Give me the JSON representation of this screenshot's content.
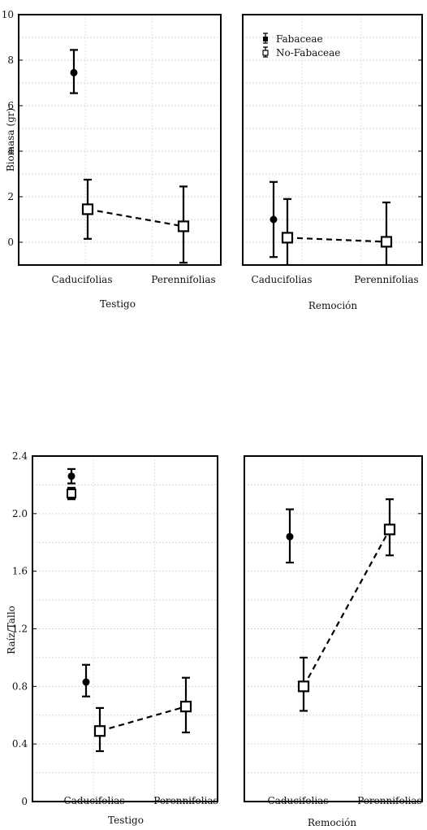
{
  "chart_data": [
    {
      "type": "scatter",
      "panel": "Testigo",
      "xlabel": "Testigo",
      "ylabel": "Biomasa (gr)",
      "ylim": [
        -1,
        10
      ],
      "yticks": [
        0,
        2,
        4,
        6,
        8,
        10
      ],
      "categories": [
        "Caducifolias",
        "Perennifolias"
      ],
      "grid": true,
      "series": [
        {
          "name": "Fabaceae",
          "marker": "filled-circle",
          "line": false,
          "points": [
            {
              "category": "Caducifolias",
              "y": 7.45,
              "low": 6.55,
              "high": 8.45
            }
          ]
        },
        {
          "name": "No-Fabaceae",
          "marker": "open-square",
          "line": "dashed",
          "points": [
            {
              "category": "Caducifolias",
              "y": 1.45,
              "low": 0.15,
              "high": 2.75
            },
            {
              "category": "Perennifolias",
              "y": 0.7,
              "low": -0.9,
              "high": 2.45
            }
          ]
        }
      ]
    },
    {
      "type": "scatter",
      "panel": "Remoción",
      "xlabel": "Remoción",
      "ylabel": "",
      "ylim": [
        -1,
        10
      ],
      "categories": [
        "Caducifolias",
        "Perennifolias"
      ],
      "grid": true,
      "legend": {
        "position": "top-left",
        "entries": [
          "Fabaceae",
          "No-Fabaceae"
        ]
      },
      "series": [
        {
          "name": "Fabaceae",
          "marker": "filled-circle",
          "line": false,
          "points": [
            {
              "category": "Caducifolias",
              "y": 1.0,
              "low": -0.65,
              "high": 2.65
            }
          ]
        },
        {
          "name": "No-Fabaceae",
          "marker": "open-square",
          "line": "dashed",
          "points": [
            {
              "category": "Caducifolias",
              "y": 0.2,
              "low": -1.0,
              "high": 1.9
            },
            {
              "category": "Perennifolias",
              "y": 0.02,
              "low": -1.0,
              "high": 1.75
            }
          ]
        }
      ]
    },
    {
      "type": "scatter",
      "panel": "Testigo",
      "xlabel": "Testigo",
      "ylabel": "Raíz/Tallo",
      "ylim": [
        0,
        2.4
      ],
      "yticks": [
        0,
        0.4,
        0.8,
        1.2,
        1.6,
        2.0,
        2.4
      ],
      "ytick_labels": [
        "0",
        "0.4",
        "0.8",
        "1.2",
        "1.6",
        "2.0",
        "2.4"
      ],
      "categories": [
        "Caducifolias",
        "Perennifolias"
      ],
      "grid": true,
      "series": [
        {
          "name": "Fabaceae",
          "marker": "filled-circle",
          "line": false,
          "points": [
            {
              "category": "Caducifolias",
              "y": 0.83,
              "low": 0.73,
              "high": 0.95
            }
          ]
        },
        {
          "name": "No-Fabaceae",
          "marker": "open-square",
          "line": "dashed",
          "points": [
            {
              "category": "Caducifolias",
              "y": 0.49,
              "low": 0.35,
              "high": 0.65
            },
            {
              "category": "Perennifolias",
              "y": 0.66,
              "low": 0.48,
              "high": 0.86
            }
          ]
        }
      ],
      "inset_markers": [
        {
          "series": "Fabaceae",
          "y": 2.26,
          "low": 2.21,
          "high": 2.31
        },
        {
          "series": "No-Fabaceae",
          "y": 2.14,
          "low": 2.1,
          "high": 2.18
        }
      ]
    },
    {
      "type": "scatter",
      "panel": "Remoción",
      "xlabel": "Remoción",
      "ylabel": "",
      "ylim": [
        0,
        2.4
      ],
      "categories": [
        "Caducifolias",
        "Perennifolias"
      ],
      "grid": true,
      "series": [
        {
          "name": "Fabaceae",
          "marker": "filled-circle",
          "line": false,
          "points": [
            {
              "category": "Caducifolias",
              "y": 1.84,
              "low": 1.66,
              "high": 2.03
            }
          ]
        },
        {
          "name": "No-Fabaceae",
          "marker": "open-square",
          "line": "dashed",
          "points": [
            {
              "category": "Caducifolias",
              "y": 0.8,
              "low": 0.63,
              "high": 1.0
            },
            {
              "category": "Perennifolias",
              "y": 1.89,
              "low": 1.71,
              "high": 2.1
            }
          ]
        }
      ]
    }
  ]
}
